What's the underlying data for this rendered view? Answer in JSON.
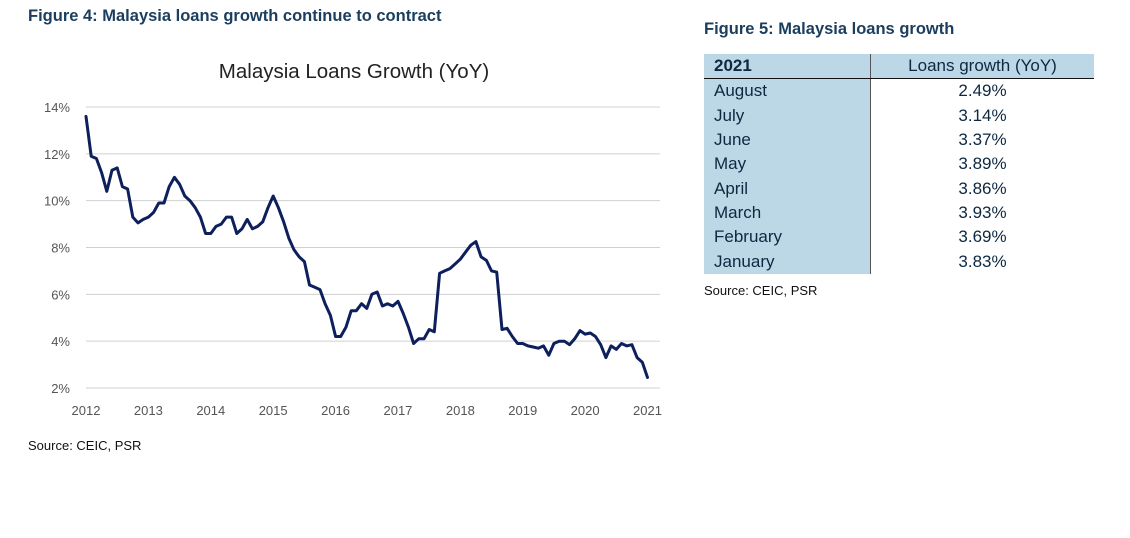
{
  "figure4": {
    "title": "Figure 4: Malaysia loans growth continue to contract",
    "source": "Source: CEIC, PSR"
  },
  "figure5": {
    "title": "Figure 5: Malaysia loans growth",
    "source": "Source: CEIC, PSR",
    "table": {
      "headers": [
        "2021",
        "Loans growth (YoY)"
      ],
      "rows": [
        [
          "August",
          "2.49%"
        ],
        [
          "July",
          "3.14%"
        ],
        [
          "June",
          "3.37%"
        ],
        [
          "May",
          "3.89%"
        ],
        [
          "April",
          "3.86%"
        ],
        [
          "March",
          "3.93%"
        ],
        [
          "February",
          "3.69%"
        ],
        [
          "January",
          "3.83%"
        ]
      ]
    }
  },
  "chart_data": {
    "type": "line",
    "title": "Malaysia Loans Growth (YoY)",
    "xlabel": "",
    "ylabel": "",
    "x_ticks": [
      "2012",
      "2013",
      "2014",
      "2015",
      "2016",
      "2017",
      "2018",
      "2019",
      "2020",
      "2021"
    ],
    "y_ticks": [
      "14%",
      "12%",
      "10%",
      "8%",
      "6%",
      "4%",
      "2%"
    ],
    "xlim": [
      2012,
      2021.2
    ],
    "ylim": [
      2,
      14
    ],
    "grid": true,
    "legend": "none",
    "colors": {
      "line": "#0d1f5c",
      "grid": "#d0d0d0",
      "table_fill": "#bcd7e6",
      "title": "#1b3d5e"
    },
    "series": [
      {
        "x": [
          2012.0,
          2012.083,
          2012.167,
          2012.25,
          2012.333,
          2012.417,
          2012.5,
          2012.583,
          2012.667,
          2012.75,
          2012.833,
          2012.917,
          2013.0,
          2013.083,
          2013.167,
          2013.25,
          2013.333,
          2013.417,
          2013.5,
          2013.583,
          2013.667,
          2013.75,
          2013.833,
          2013.917,
          2014.0,
          2014.083,
          2014.167,
          2014.25,
          2014.333,
          2014.417,
          2014.5,
          2014.583,
          2014.667,
          2014.75,
          2014.833,
          2014.917,
          2015.0,
          2015.083,
          2015.167,
          2015.25,
          2015.333,
          2015.417,
          2015.5,
          2015.583,
          2015.667,
          2015.75,
          2015.833,
          2015.917,
          2016.0,
          2016.083,
          2016.167,
          2016.25,
          2016.333,
          2016.417,
          2016.5,
          2016.583,
          2016.667,
          2016.75,
          2016.833,
          2016.917,
          2017.0,
          2017.083,
          2017.167,
          2017.25,
          2017.333,
          2017.417,
          2017.5,
          2017.583,
          2017.667,
          2017.75,
          2017.833,
          2017.917,
          2018.0,
          2018.083,
          2018.167,
          2018.25,
          2018.333,
          2018.417,
          2018.5,
          2018.583,
          2018.667,
          2018.75,
          2018.833,
          2018.917,
          2019.0,
          2019.083,
          2019.167,
          2019.25,
          2019.333,
          2019.417,
          2019.5,
          2019.583,
          2019.667,
          2019.75,
          2019.833,
          2019.917,
          2020.0,
          2020.083,
          2020.167,
          2020.25,
          2020.333,
          2020.417,
          2020.5,
          2020.583,
          2020.667,
          2020.75,
          2020.833,
          2020.917,
          2021.0
        ],
        "values": [
          13.6,
          11.9,
          11.8,
          11.2,
          10.4,
          11.3,
          11.4,
          10.6,
          10.5,
          9.3,
          9.05,
          9.2,
          9.3,
          9.5,
          9.9,
          9.9,
          10.6,
          11.0,
          10.7,
          10.2,
          10.0,
          9.7,
          9.3,
          8.6,
          8.6,
          8.9,
          9.0,
          9.3,
          9.3,
          8.6,
          8.8,
          9.2,
          8.8,
          8.9,
          9.1,
          9.7,
          10.2,
          9.7,
          9.1,
          8.4,
          7.9,
          7.6,
          7.4,
          6.4,
          6.3,
          6.2,
          5.6,
          5.1,
          4.2,
          4.2,
          4.6,
          5.3,
          5.3,
          5.6,
          5.4,
          6.0,
          6.1,
          5.5,
          5.6,
          5.5,
          5.7,
          5.2,
          4.6,
          3.9,
          4.1,
          4.1,
          4.5,
          4.4,
          6.9,
          7.0,
          7.1,
          7.3,
          7.5,
          7.8,
          8.1,
          8.25,
          7.6,
          7.45,
          7.0,
          6.95,
          4.5,
          4.55,
          4.2,
          3.9,
          3.9,
          3.8,
          3.75,
          3.7,
          3.8,
          3.4,
          3.9,
          4.0,
          4.0,
          3.85,
          4.1,
          4.45,
          4.3,
          4.35,
          4.2,
          3.85,
          3.3,
          3.8,
          3.65,
          3.9,
          3.8,
          3.85,
          3.3,
          3.1,
          2.45
        ]
      }
    ]
  }
}
